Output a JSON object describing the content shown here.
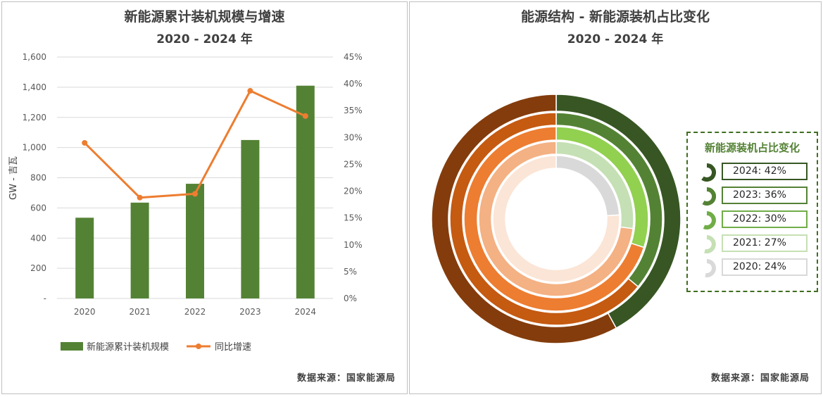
{
  "left": {
    "title_line1": "新能源累计装机规模与增速",
    "title_line2": "2020 - 2024 年",
    "y_axis_label": "GW - 吉瓦",
    "source": "数据来源：国家能源局"
  },
  "right": {
    "title_line1": "能源结构 - 新能源装机占比变化",
    "title_line2": "2020 - 2024 年",
    "legend_title": "新能源装机占比变化",
    "source": "数据来源：国家能源局"
  },
  "colors": {
    "bar": "#548235",
    "line": "#ed7d31",
    "ring_green": [
      "#d9d9d9",
      "#c5e0b4",
      "#92d050",
      "#548235",
      "#375623"
    ],
    "ring_orange": [
      "#fbe5d6",
      "#f4b183",
      "#ed7d31",
      "#c55a11",
      "#843c0c"
    ],
    "legend_border": [
      "#d9d9d9",
      "#c5e0b4",
      "#70ad47",
      "#548235",
      "#375623"
    ]
  },
  "chart_data": [
    {
      "type": "bar+line",
      "title": "新能源累计装机规模与增速 2020 - 2024 年",
      "categories": [
        "2020",
        "2021",
        "2022",
        "2023",
        "2024"
      ],
      "series": [
        {
          "name": "新能源累计装机规模",
          "type": "bar",
          "axis": "left",
          "values": [
            535,
            635,
            760,
            1050,
            1410
          ]
        },
        {
          "name": "同比增速",
          "type": "line",
          "axis": "right",
          "values": [
            29,
            18.8,
            19.5,
            38.7,
            34
          ]
        }
      ],
      "ylabel": "GW - 吉瓦",
      "ylim": [
        0,
        1600
      ],
      "y_ticks": [
        "-",
        "200",
        "400",
        "600",
        "800",
        "1,000",
        "1,200",
        "1,400",
        "1,600"
      ],
      "y2lim": [
        0,
        45
      ],
      "y2_ticks": [
        "0%",
        "5%",
        "10%",
        "15%",
        "20%",
        "25%",
        "30%",
        "35%",
        "40%",
        "45%"
      ],
      "legend": [
        "新能源累计装机规模",
        "同比增速"
      ],
      "legend_position": "bottom"
    },
    {
      "type": "pie",
      "subtype": "nested-donut",
      "title": "能源结构 - 新能源装机占比变化 2020 - 2024 年",
      "rings": [
        {
          "year": "2020",
          "share": 24,
          "label": "2020: 24%"
        },
        {
          "year": "2021",
          "share": 27,
          "label": "2021: 27%"
        },
        {
          "year": "2022",
          "share": 30,
          "label": "2022: 30%"
        },
        {
          "year": "2023",
          "share": 36,
          "label": "2023: 36%"
        },
        {
          "year": "2024",
          "share": 42,
          "label": "2024: 42%"
        }
      ],
      "legend_title": "新能源装机占比变化",
      "legend_position": "right"
    }
  ]
}
